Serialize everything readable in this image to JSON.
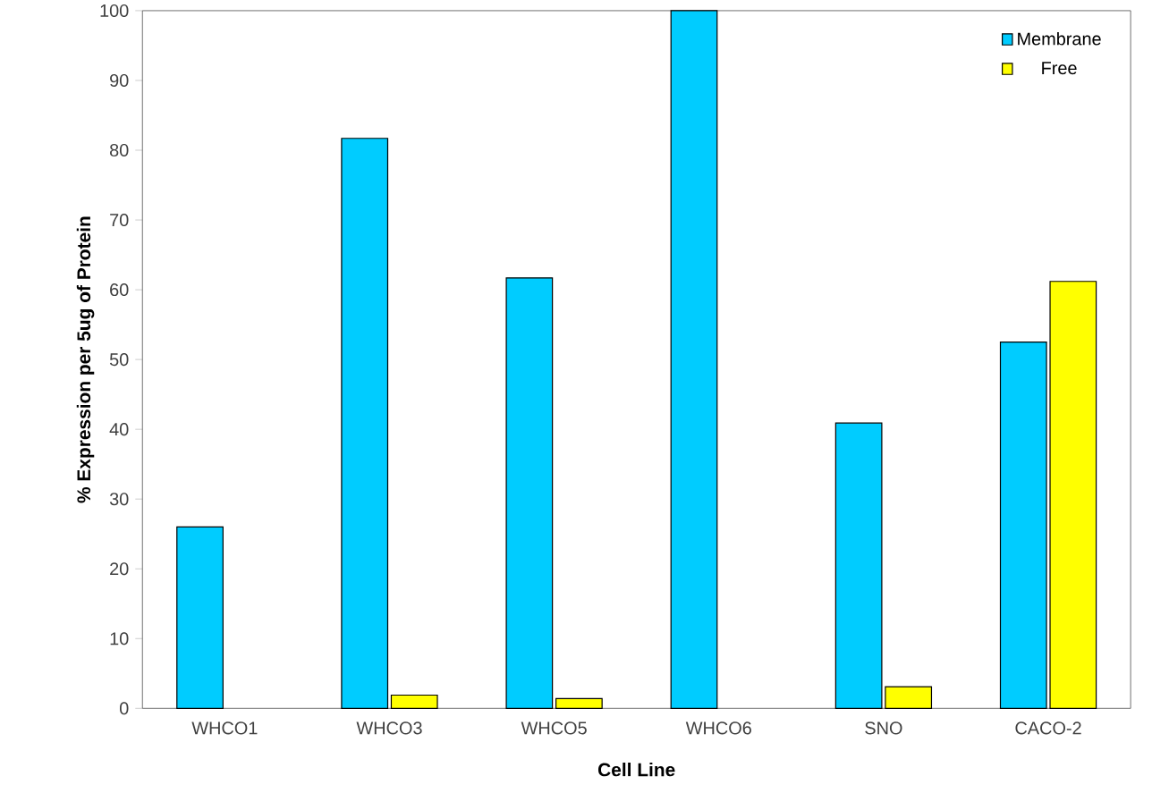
{
  "chart_data": {
    "type": "bar",
    "xlabel": "Cell Line",
    "ylabel": "% Expression per 5ug of Protein",
    "categories": [
      "WHCO1",
      "WHCO3",
      "WHCO5",
      "WHCO6",
      "SNO",
      "CACO-2"
    ],
    "series": [
      {
        "name": "Membrane",
        "color": "#00ccff",
        "values": [
          26,
          81.7,
          61.7,
          100,
          40.9,
          52.5
        ]
      },
      {
        "name": "Free",
        "color": "#ffff00",
        "values": [
          null,
          1.9,
          1.4,
          null,
          3.1,
          61.2
        ]
      }
    ],
    "ylim": [
      0,
      100
    ],
    "yticks": [
      0,
      10,
      20,
      30,
      40,
      50,
      60,
      70,
      80,
      90,
      100
    ],
    "grid": false,
    "legend": "top right"
  }
}
